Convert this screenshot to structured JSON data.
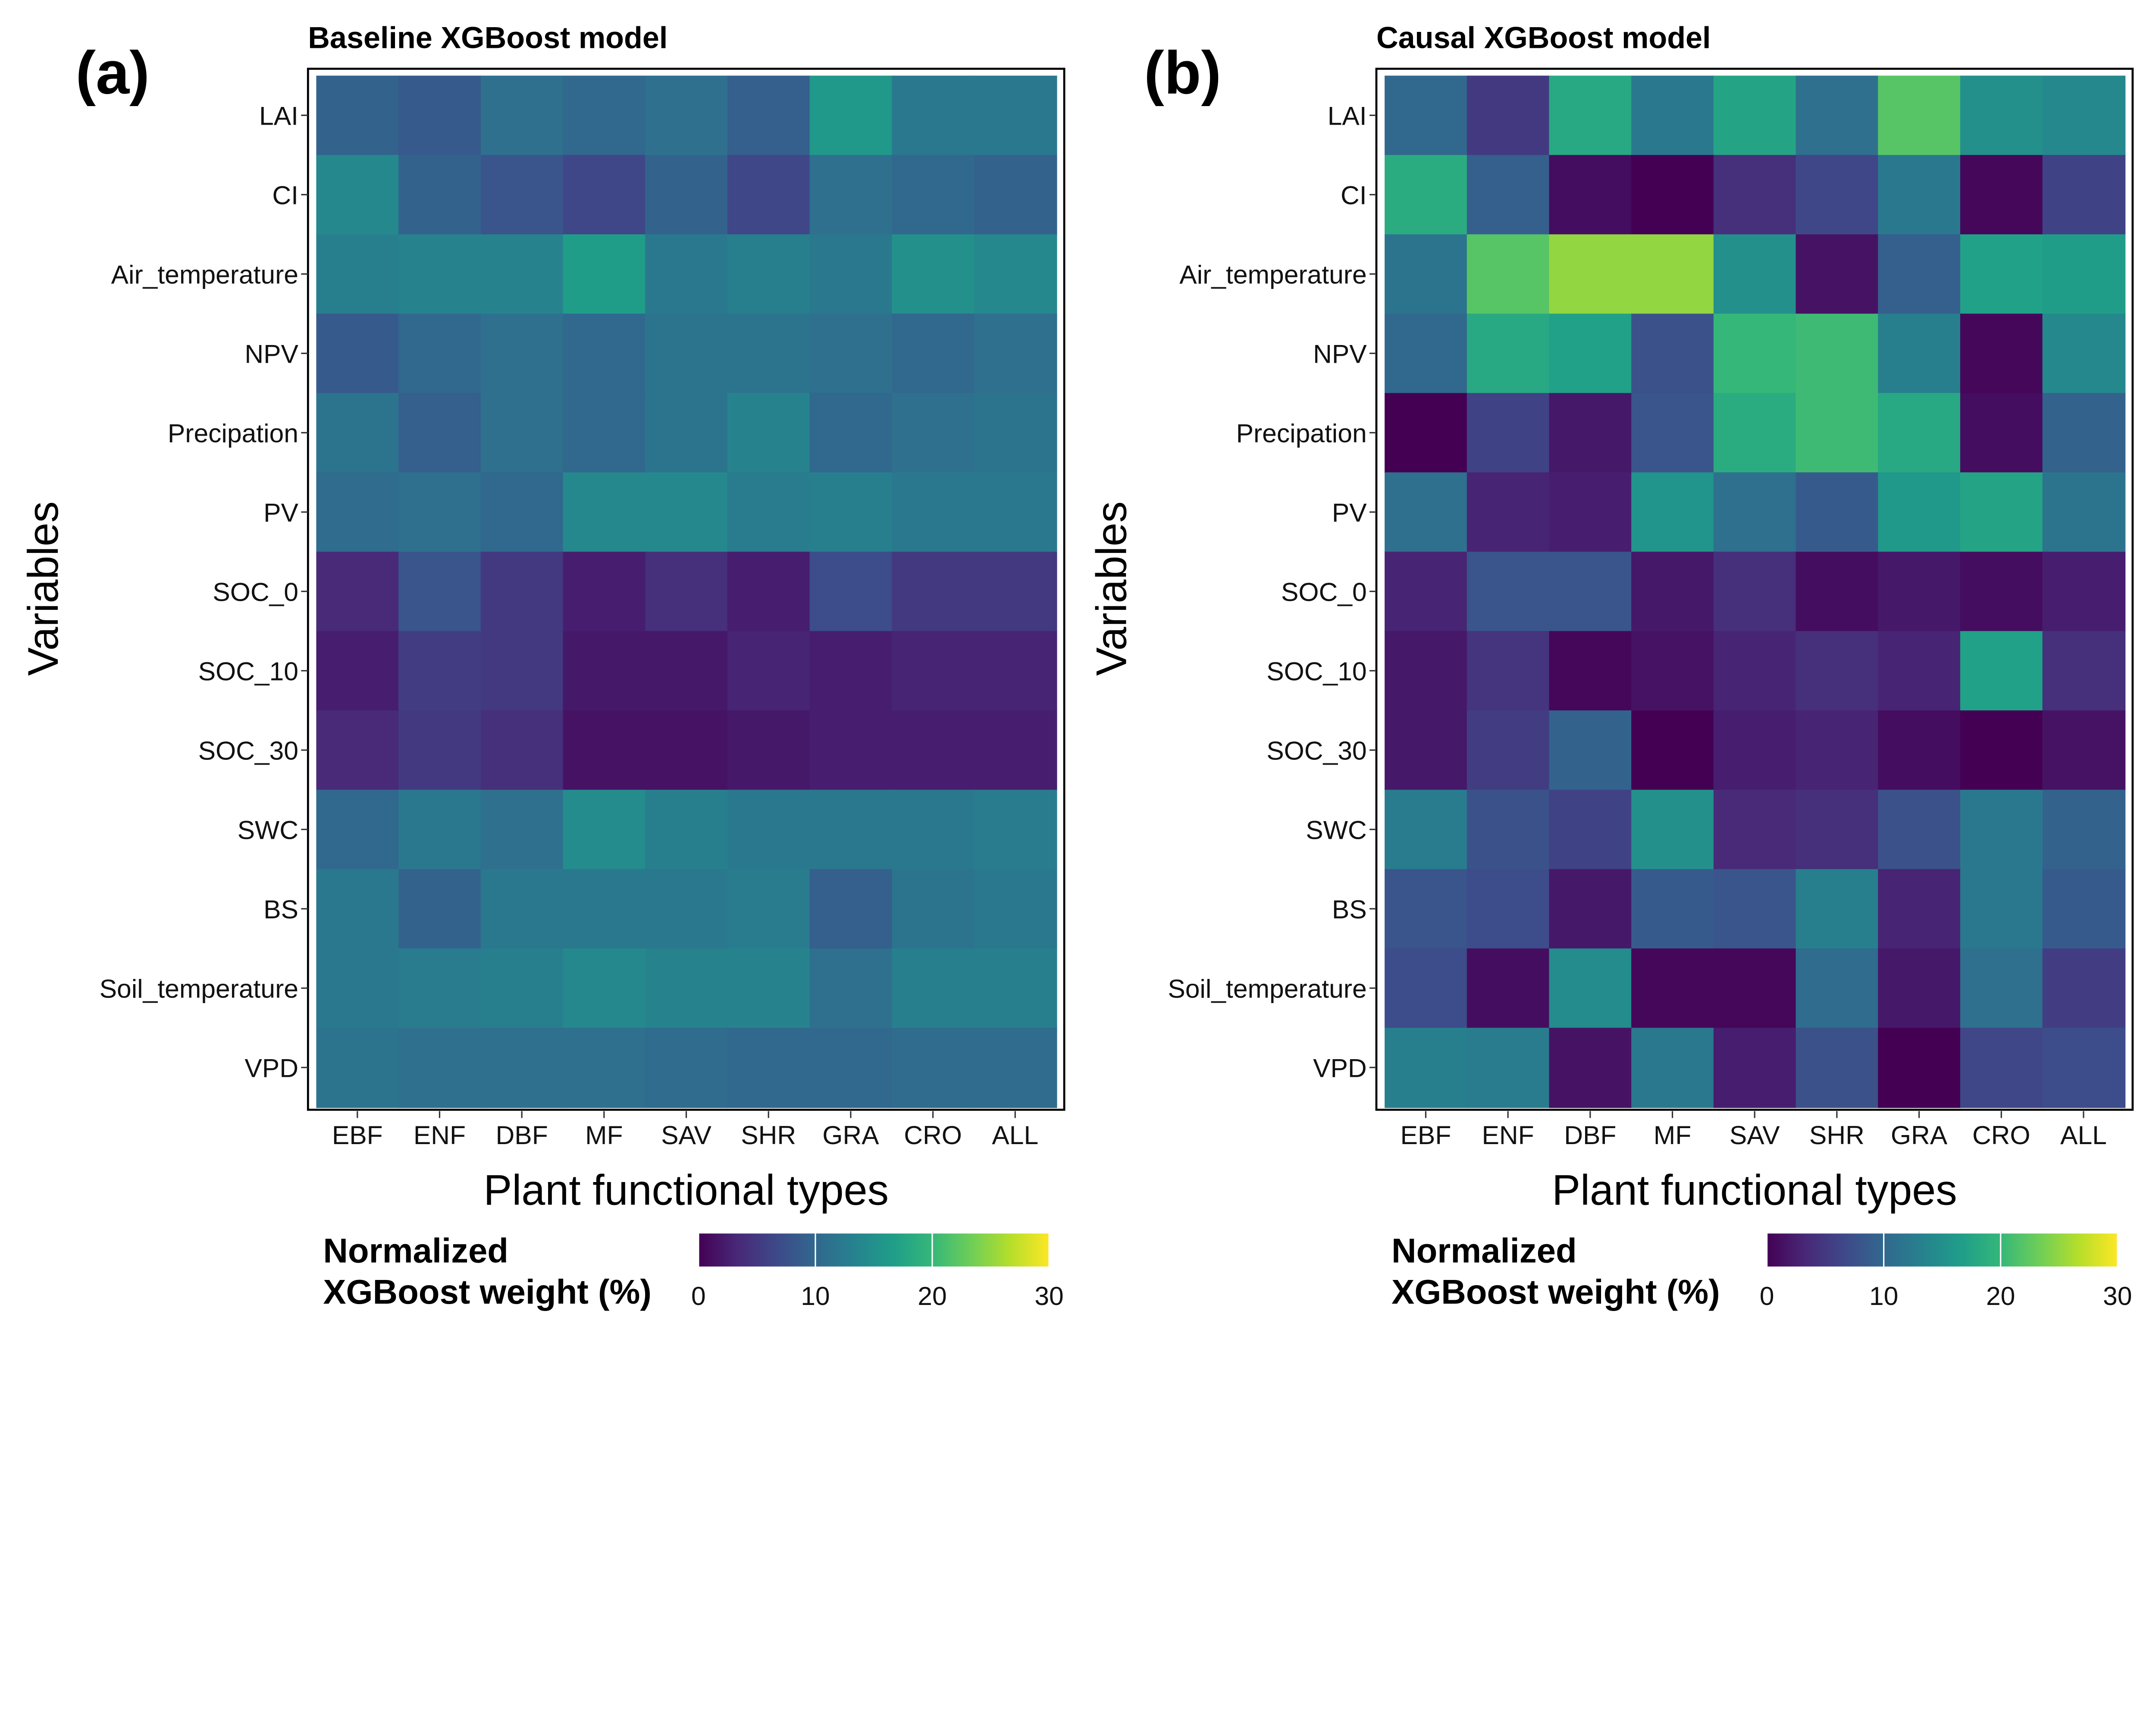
{
  "colorscale": {
    "name": "viridis",
    "stops": [
      "#440154",
      "#482878",
      "#3e4989",
      "#31688e",
      "#26828e",
      "#1f9e89",
      "#35b779",
      "#6ece58",
      "#b5de2b",
      "#fde725"
    ],
    "range": [
      0,
      30
    ]
  },
  "chart_data": [
    {
      "type": "heatmap",
      "panel_label": "(a)",
      "title": "Baseline XGBoost model",
      "xlabel": "Plant functional types",
      "ylabel": "Variables",
      "x_categories": [
        "EBF",
        "ENF",
        "DBF",
        "MF",
        "SAV",
        "SHR",
        "GRA",
        "CRO",
        "ALL"
      ],
      "y_categories": [
        "LAI",
        "CI",
        "Air_temperature",
        "NPV",
        "Precipation",
        "PV",
        "SOC_0",
        "SOC_10",
        "SOC_30",
        "SWC",
        "BS",
        "Soil_temperature",
        "VPD"
      ],
      "values": [
        [
          9.5,
          8.5,
          11,
          10,
          11,
          9,
          16,
          12,
          12
        ],
        [
          14,
          9.5,
          8,
          6.5,
          9.5,
          6.5,
          11,
          10,
          9.5
        ],
        [
          13,
          13.5,
          13.5,
          16.5,
          12,
          13,
          12,
          15,
          14
        ],
        [
          8.5,
          10,
          11,
          10,
          11.5,
          11.5,
          11,
          10,
          11
        ],
        [
          11.5,
          9,
          11,
          10,
          11.5,
          13.5,
          10,
          11,
          11.5
        ],
        [
          10.5,
          11,
          10,
          14,
          14,
          12.5,
          13,
          12,
          12
        ],
        [
          3.5,
          8,
          5,
          2.5,
          4,
          2.5,
          7,
          5,
          5
        ],
        [
          2.5,
          5.5,
          5,
          2,
          2,
          3,
          2.5,
          3,
          3
        ],
        [
          3.5,
          5,
          4,
          1.5,
          1.5,
          2,
          2.5,
          2.5,
          2.5
        ],
        [
          10,
          12,
          11,
          14.5,
          13,
          12,
          12,
          12,
          12.5
        ],
        [
          12,
          9.5,
          12,
          12,
          12,
          12.5,
          9,
          11.5,
          12
        ],
        [
          12,
          12.5,
          13,
          14,
          13.5,
          13.5,
          11,
          13,
          13
        ],
        [
          11.5,
          11,
          11,
          11,
          10.5,
          10,
          10,
          10.5,
          10.5
        ]
      ],
      "colorbar": {
        "title_line1": "Normalized",
        "title_line2": "XGBoost weight (%)",
        "ticks": [
          "0",
          "10",
          "20",
          "30"
        ],
        "range": [
          0,
          30
        ]
      }
    },
    {
      "type": "heatmap",
      "panel_label": "(b)",
      "title": "Causal XGBoost model",
      "xlabel": "Plant functional types",
      "ylabel": "Variables",
      "x_categories": [
        "EBF",
        "ENF",
        "DBF",
        "MF",
        "SAV",
        "SHR",
        "GRA",
        "CRO",
        "ALL"
      ],
      "y_categories": [
        "LAI",
        "CI",
        "Air_temperature",
        "NPV",
        "Precipation",
        "PV",
        "SOC_0",
        "SOC_10",
        "SOC_30",
        "SWC",
        "BS",
        "Soil_temperature",
        "VPD"
      ],
      "values": [
        [
          10,
          5,
          18,
          12,
          17.5,
          11,
          22,
          15,
          14
        ],
        [
          18.5,
          9,
          1,
          0,
          4,
          6.5,
          12,
          0.5,
          6
        ],
        [
          11.5,
          22,
          25,
          25,
          15,
          1.5,
          9,
          17,
          16.5
        ],
        [
          10,
          18,
          17,
          7.5,
          20,
          20.5,
          13,
          0.5,
          14
        ],
        [
          0,
          6,
          2,
          8,
          18.5,
          20.5,
          18,
          1,
          9.5
        ],
        [
          11,
          3,
          2.5,
          15.5,
          11,
          8.5,
          16,
          17.5,
          11.5
        ],
        [
          3,
          8,
          8,
          2,
          4,
          1,
          2,
          1,
          2.5
        ],
        [
          2,
          4.5,
          0.5,
          1.5,
          3,
          4,
          3,
          17,
          4
        ],
        [
          2,
          5.5,
          9.5,
          0,
          2.5,
          3,
          1,
          0,
          1.5
        ],
        [
          12.5,
          7.5,
          6,
          15,
          3.5,
          4,
          7.5,
          12,
          9.5
        ],
        [
          8,
          7,
          2,
          8.5,
          8,
          13,
          3,
          12,
          8.5
        ],
        [
          7,
          1,
          14.5,
          0.5,
          0.5,
          10.5,
          2,
          11,
          5.5
        ],
        [
          13,
          12.5,
          1.5,
          12,
          2.5,
          7.5,
          0,
          6.5,
          7
        ]
      ],
      "colorbar": {
        "title_line1": "Normalized",
        "title_line2": "XGBoost weight (%)",
        "ticks": [
          "0",
          "10",
          "20",
          "30"
        ],
        "range": [
          0,
          30
        ]
      }
    }
  ]
}
